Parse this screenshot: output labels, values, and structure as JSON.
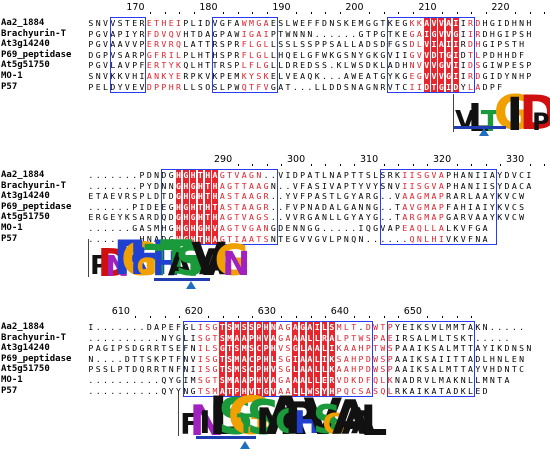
{
  "species": [
    "Aa2_1884",
    "Brachyurin-T",
    "At3g14240",
    "P69_peptidase",
    "At5g51750",
    "MO-1",
    "P57"
  ],
  "blocks": [
    {
      "ruler_labels": [
        "170",
        "180",
        "190",
        "200",
        "210",
        "220"
      ],
      "ruler_positions": [
        0,
        10,
        20,
        30,
        40,
        50
      ],
      "ruler_base": 165,
      "sequences": [
        "SNVVSTERETHEIPLIDVGFAWMGAESLWEFFDNSKEMGGTKEGKKAVVAIIRDHGIDHNH",
        "PGVAPIYRFDVQVHTDAGPAWIGAIPTWNNN......GTPGTKEGAIGVVGIIRDHGIPSH",
        "PGVAAVVPERVRQLATTRSPRFLGLLSSLSSPPSALLADSDFGSDLVIAIIRDHGIPSTH",
        "DGPVSARPGFRILPLHTHSPRFLGLLHQELGFWKGSNYGKGVIIGVVDTGIDTLPDHHDF",
        "PGVLAVPFERTYKQLHTTRSPLFLGLLDREDSS.KLWSDKLADHNVVVGVIIDSGIWPESP",
        "SNVKKVHIANKYERPKVKPEMKYSKELVEAQK...AWEATGYKGEGVVVGIIRDGIDYNHP",
        "PELDYVEVDPPHRLLSOSLPWQTFVGAT...LLDDSNAGNRVTCIIDTGIDYLADPF"
      ],
      "consensus_logo": "VLTGIDP"
    },
    {
      "ruler_labels": [
        "290",
        "300",
        "310",
        "320",
        "330"
      ],
      "ruler_positions": [
        0,
        10,
        20,
        30,
        40
      ],
      "ruler_base": 280,
      "sequences": [
        ".......PDNDGHGHTHAGTVAGN..VIDPATLNAPTTSLSRKIISGVAPHANIIAYDVCI",
        ".......PYDNNGHGHTHAGTTAAGN..VFASIVAPTYVYSNVIISGVAPHANIISYDACA",
        "ETAEVRSPLDTDGHGHTHASTAAGR..YVFPASTLGYARG..VAAGMAPRARLAAYKVCW",
        "......PIDEEGHGHTHTASTAAGR..FVPNADALGANNG..TAVGMAPFAHIAIYKVCS",
        "ERGEYKSARDQDGHGHTHAGTVAGS..VVRGANLLGYAYG..TARGMAPGARVAAYKVCW",
        "......GASMHGHGHGHVAGTVGANGDENNGG.....IQGVAPEAQLLALKVFGA",
        ".......HNADGHGHTHAGTIAATSNTEGVVGVLPNQN......QNLHIVKVFNA"
      ],
      "consensus_logo": "PDNRGHGTHTASTVAAGN"
    },
    {
      "ruler_labels": [
        "610",
        "620",
        "630",
        "640",
        "650"
      ],
      "ruler_positions": [
        0,
        10,
        20,
        30,
        40
      ],
      "ruler_base": 605,
      "sequences": [
        "I.......DAPEFGLISGTSMSSPHNAGAGAILSMLT.DWTPYEIKSVLMMTAKN.....",
        "..........NYGLISGTSMAAPHVAGAAALLRALPTWSPAEIRSALMLTSKT.....",
        "PAGIPSDGRRTSEFNILSGTSMSCPHVSGLAALIKAAHPTWSPAAIKSALMTTAYIKDNSN",
        "N....DTTSKPTFNVISGTSMACPHLSGIAALIKSAHPDWSPAAIKSAIITTADLHNLEN",
        "PSSLPTDQRRTNFNIISGTSMSCPHVSGLAALLKAAHPDWSPAAIKSALMTTAYVHDNTC",
        "..........QYGIMSGTSMAAPHVAGAAALLERVDKDFQLKNADRVLMAKNLLMNTA",
        "..........QYYNGTSMATPHVTGVAALLWSYHPQCSASQLRKAIKATADKLED"
      ],
      "consensus_logo": "FNILSGTSMACPHVSGAAAL"
    }
  ],
  "colors": {
    "identity_bg": "#e8242c",
    "similar_text": "#e0202a",
    "frame": "#2a3cf0",
    "underline": "#1f3db0",
    "marker": "#1f6ec0"
  }
}
